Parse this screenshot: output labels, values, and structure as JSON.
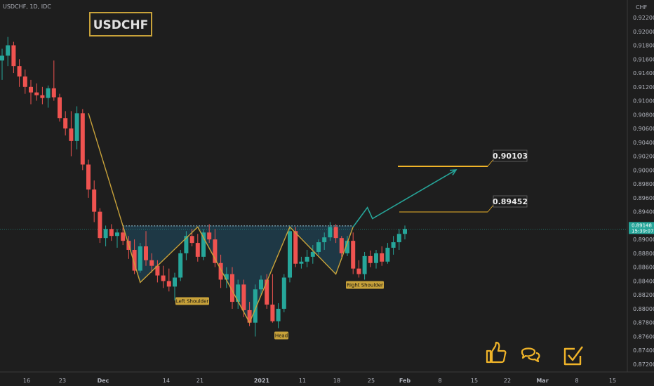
{
  "header": {
    "symbol_info": "USDCHF, 1D, IDC",
    "currency": "CHF"
  },
  "title_box": {
    "label": "USDCHF"
  },
  "colors": {
    "background": "#1e1e1e",
    "bull": "#26a69a",
    "bear": "#ef5350",
    "pattern_line": "#c8a23a",
    "target_line": "#f0b429",
    "arrow": "#26a69a",
    "price_tag": "#26a69a",
    "label_bg": "#c8a23a",
    "icon": "#f0b429"
  },
  "chart_data": {
    "type": "candlestick",
    "ylim": [
      0.872,
      0.923
    ],
    "y_ticks": [
      "0.92200",
      "0.92000",
      "0.91800",
      "0.91600",
      "0.91400",
      "0.91200",
      "0.91000",
      "0.90800",
      "0.90600",
      "0.90400",
      "0.90200",
      "0.90000",
      "0.89800",
      "0.89600",
      "0.89400",
      "0.89200",
      "0.89000",
      "0.88800",
      "0.88600",
      "0.88400",
      "0.88200",
      "0.88000",
      "0.87800",
      "0.87600",
      "0.87400",
      "0.87200"
    ],
    "x_ticks": [
      "16",
      "23",
      "Dec",
      "14",
      "21",
      "2021",
      "11",
      "18",
      "25",
      "Feb",
      "8",
      "15",
      "22",
      "Mar",
      "8",
      "15"
    ],
    "candles": [
      {
        "o": 0.9158,
        "h": 0.9175,
        "l": 0.913,
        "c": 0.9165
      },
      {
        "o": 0.9165,
        "h": 0.9192,
        "l": 0.915,
        "c": 0.918
      },
      {
        "o": 0.918,
        "h": 0.9185,
        "l": 0.914,
        "c": 0.915
      },
      {
        "o": 0.915,
        "h": 0.916,
        "l": 0.912,
        "c": 0.9135
      },
      {
        "o": 0.9135,
        "h": 0.9145,
        "l": 0.911,
        "c": 0.912
      },
      {
        "o": 0.912,
        "h": 0.913,
        "l": 0.9095,
        "c": 0.9112
      },
      {
        "o": 0.9112,
        "h": 0.9125,
        "l": 0.91,
        "c": 0.9108
      },
      {
        "o": 0.9108,
        "h": 0.912,
        "l": 0.9095,
        "c": 0.9104
      },
      {
        "o": 0.9104,
        "h": 0.9122,
        "l": 0.909,
        "c": 0.9118
      },
      {
        "o": 0.9118,
        "h": 0.9158,
        "l": 0.91,
        "c": 0.9105
      },
      {
        "o": 0.9105,
        "h": 0.911,
        "l": 0.907,
        "c": 0.9075
      },
      {
        "o": 0.9075,
        "h": 0.9085,
        "l": 0.905,
        "c": 0.906
      },
      {
        "o": 0.906,
        "h": 0.9085,
        "l": 0.902,
        "c": 0.9042
      },
      {
        "o": 0.9042,
        "h": 0.9092,
        "l": 0.903,
        "c": 0.9082
      },
      {
        "o": 0.9082,
        "h": 0.9088,
        "l": 0.9,
        "c": 0.9008
      },
      {
        "o": 0.9008,
        "h": 0.9015,
        "l": 0.896,
        "c": 0.8972
      },
      {
        "o": 0.8972,
        "h": 0.8985,
        "l": 0.8925,
        "c": 0.894
      },
      {
        "o": 0.894,
        "h": 0.8945,
        "l": 0.8895,
        "c": 0.8902
      },
      {
        "o": 0.8902,
        "h": 0.892,
        "l": 0.889,
        "c": 0.8915
      },
      {
        "o": 0.8915,
        "h": 0.8922,
        "l": 0.8898,
        "c": 0.8905
      },
      {
        "o": 0.8905,
        "h": 0.8915,
        "l": 0.8888,
        "c": 0.891
      },
      {
        "o": 0.891,
        "h": 0.8918,
        "l": 0.8892,
        "c": 0.8898
      },
      {
        "o": 0.8898,
        "h": 0.8905,
        "l": 0.8872,
        "c": 0.8885
      },
      {
        "o": 0.8885,
        "h": 0.89,
        "l": 0.885,
        "c": 0.8855
      },
      {
        "o": 0.8855,
        "h": 0.8895,
        "l": 0.8852,
        "c": 0.889
      },
      {
        "o": 0.889,
        "h": 0.8912,
        "l": 0.8862,
        "c": 0.887
      },
      {
        "o": 0.887,
        "h": 0.888,
        "l": 0.8852,
        "c": 0.8862
      },
      {
        "o": 0.8862,
        "h": 0.887,
        "l": 0.8838,
        "c": 0.8848
      },
      {
        "o": 0.8848,
        "h": 0.8862,
        "l": 0.883,
        "c": 0.884
      },
      {
        "o": 0.884,
        "h": 0.8858,
        "l": 0.8825,
        "c": 0.8832
      },
      {
        "o": 0.8832,
        "h": 0.8852,
        "l": 0.8812,
        "c": 0.8845
      },
      {
        "o": 0.8845,
        "h": 0.8885,
        "l": 0.884,
        "c": 0.888
      },
      {
        "o": 0.888,
        "h": 0.8912,
        "l": 0.887,
        "c": 0.8905
      },
      {
        "o": 0.8905,
        "h": 0.8915,
        "l": 0.889,
        "c": 0.8895
      },
      {
        "o": 0.8895,
        "h": 0.8908,
        "l": 0.8868,
        "c": 0.8875
      },
      {
        "o": 0.8875,
        "h": 0.8915,
        "l": 0.887,
        "c": 0.891
      },
      {
        "o": 0.891,
        "h": 0.8922,
        "l": 0.8895,
        "c": 0.89
      },
      {
        "o": 0.89,
        "h": 0.8915,
        "l": 0.886,
        "c": 0.8866
      },
      {
        "o": 0.8866,
        "h": 0.8878,
        "l": 0.883,
        "c": 0.8842
      },
      {
        "o": 0.8842,
        "h": 0.886,
        "l": 0.883,
        "c": 0.885
      },
      {
        "o": 0.885,
        "h": 0.886,
        "l": 0.88,
        "c": 0.881
      },
      {
        "o": 0.881,
        "h": 0.8842,
        "l": 0.88,
        "c": 0.8835
      },
      {
        "o": 0.8835,
        "h": 0.8842,
        "l": 0.8788,
        "c": 0.8798
      },
      {
        "o": 0.8798,
        "h": 0.881,
        "l": 0.8775,
        "c": 0.878
      },
      {
        "o": 0.878,
        "h": 0.8835,
        "l": 0.876,
        "c": 0.8828
      },
      {
        "o": 0.8828,
        "h": 0.8848,
        "l": 0.882,
        "c": 0.8842
      },
      {
        "o": 0.8842,
        "h": 0.885,
        "l": 0.88,
        "c": 0.8806
      },
      {
        "o": 0.8806,
        "h": 0.885,
        "l": 0.878,
        "c": 0.8782
      },
      {
        "o": 0.8782,
        "h": 0.8808,
        "l": 0.8772,
        "c": 0.88
      },
      {
        "o": 0.88,
        "h": 0.885,
        "l": 0.8795,
        "c": 0.8845
      },
      {
        "o": 0.8845,
        "h": 0.892,
        "l": 0.8838,
        "c": 0.8912
      },
      {
        "o": 0.8912,
        "h": 0.8918,
        "l": 0.886,
        "c": 0.8865
      },
      {
        "o": 0.8865,
        "h": 0.8875,
        "l": 0.8858,
        "c": 0.8868
      },
      {
        "o": 0.8868,
        "h": 0.8885,
        "l": 0.886,
        "c": 0.8875
      },
      {
        "o": 0.8875,
        "h": 0.8892,
        "l": 0.8865,
        "c": 0.8882
      },
      {
        "o": 0.8882,
        "h": 0.89,
        "l": 0.8878,
        "c": 0.8896
      },
      {
        "o": 0.8896,
        "h": 0.891,
        "l": 0.8885,
        "c": 0.8903
      },
      {
        "o": 0.8903,
        "h": 0.8925,
        "l": 0.8898,
        "c": 0.8918
      },
      {
        "o": 0.8918,
        "h": 0.8922,
        "l": 0.8895,
        "c": 0.8902
      },
      {
        "o": 0.8902,
        "h": 0.8905,
        "l": 0.8875,
        "c": 0.888
      },
      {
        "o": 0.888,
        "h": 0.8905,
        "l": 0.8876,
        "c": 0.8898
      },
      {
        "o": 0.8898,
        "h": 0.891,
        "l": 0.885,
        "c": 0.8858
      },
      {
        "o": 0.8858,
        "h": 0.887,
        "l": 0.8845,
        "c": 0.885
      },
      {
        "o": 0.885,
        "h": 0.8882,
        "l": 0.8842,
        "c": 0.8876
      },
      {
        "o": 0.8876,
        "h": 0.8884,
        "l": 0.886,
        "c": 0.8866
      },
      {
        "o": 0.8866,
        "h": 0.8885,
        "l": 0.8858,
        "c": 0.888
      },
      {
        "o": 0.888,
        "h": 0.889,
        "l": 0.8862,
        "c": 0.8868
      },
      {
        "o": 0.8868,
        "h": 0.8895,
        "l": 0.8865,
        "c": 0.8888
      },
      {
        "o": 0.8888,
        "h": 0.8905,
        "l": 0.8878,
        "c": 0.8896
      },
      {
        "o": 0.8896,
        "h": 0.8915,
        "l": 0.8885,
        "c": 0.8908
      },
      {
        "o": 0.8908,
        "h": 0.892,
        "l": 0.89,
        "c": 0.8915
      }
    ],
    "neckline": 0.89195,
    "pattern_path": [
      [
        15,
        0.9082
      ],
      [
        24,
        0.8838
      ],
      [
        34,
        0.8918
      ],
      [
        43,
        0.878
      ],
      [
        50,
        0.8918
      ],
      [
        58,
        0.885
      ],
      [
        61,
        0.8918
      ]
    ],
    "projection_path": [
      [
        61,
        0.8918
      ],
      [
        63,
        0.8946
      ],
      [
        64,
        0.893
      ],
      [
        69,
        0.9
      ]
    ],
    "targets": [
      {
        "value": 0.89452,
        "label": "0.89452",
        "from": 62
      },
      {
        "value": 0.90103,
        "label": "0.90103",
        "from": 62
      }
    ],
    "labels": [
      {
        "text": "Left Shoulder",
        "x": 25,
        "y": 0.8838
      },
      {
        "text": "Head",
        "x": 43,
        "y": 0.878
      },
      {
        "text": "Right Shoulder",
        "x": 58,
        "y": 0.885
      }
    ],
    "last_price": "0.89148",
    "countdown": "15:39:07",
    "grid": false
  },
  "icons": {
    "like": "thumbs-up-icon",
    "comment": "chat-bubbles-icon",
    "check": "checkbox-icon"
  }
}
